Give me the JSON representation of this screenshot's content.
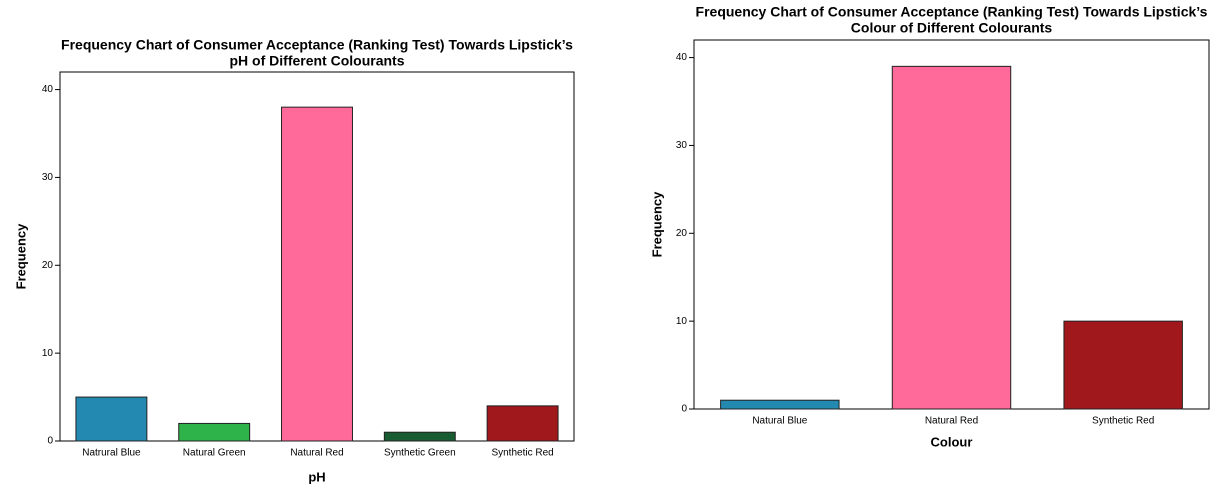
{
  "chart_data": [
    {
      "type": "bar",
      "title": [
        "Frequency Chart of Consumer Acceptance (Ranking Test) Towards Lipstick’s",
        "pH of Different Colourants"
      ],
      "x_label": "pH",
      "y_label": "Frequency",
      "categories": [
        "Natrural Blue",
        "Natural Green",
        "Natural Red",
        "Synthetic Green",
        "Synthetic Red"
      ],
      "values": [
        5,
        2,
        38,
        1,
        4
      ],
      "colors": [
        "#2489b0",
        "#2db34a",
        "#ff6a9a",
        "#1a5c32",
        "#a0171c"
      ],
      "ylim": [
        0,
        42
      ],
      "yticks": [
        0,
        10,
        20,
        30,
        40
      ]
    },
    {
      "type": "bar",
      "title": [
        "Frequency Chart of Consumer Acceptance (Ranking Test) Towards Lipstick’s",
        "Colour of Different Colourants"
      ],
      "x_label": "Colour",
      "y_label": "Frequency",
      "categories": [
        "Natural Blue",
        "Natural Red",
        "Synthetic Red"
      ],
      "values": [
        1,
        39,
        10
      ],
      "colors": [
        "#2489b0",
        "#ff6a9a",
        "#a0171c"
      ],
      "ylim": [
        0,
        42
      ],
      "yticks": [
        0,
        10,
        20,
        30,
        40
      ]
    }
  ]
}
